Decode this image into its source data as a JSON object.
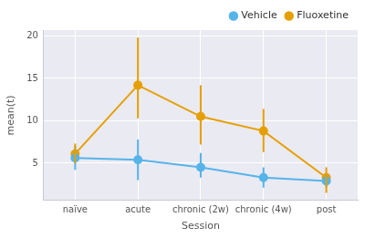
{
  "chart_data": {
    "type": "line",
    "x_label": "Session",
    "y_label": "mean(t)",
    "categories": [
      "naïve",
      "acute",
      "chronic (2w)",
      "chronic (4w)",
      "post"
    ],
    "series": [
      {
        "name": "Vehicle",
        "color": "#56b4e9",
        "marker": "circle",
        "values": [
          5.6,
          5.4,
          4.5,
          3.3,
          2.9
        ],
        "lower": [
          4.2,
          3.0,
          3.3,
          2.1,
          2.2
        ],
        "upper": [
          7.0,
          7.8,
          6.2,
          4.5,
          3.7
        ]
      },
      {
        "name": "Fluoxetine",
        "color": "#e69f00",
        "marker": "circle",
        "values": [
          6.1,
          14.2,
          10.5,
          8.8,
          3.3
        ],
        "lower": [
          5.0,
          10.3,
          7.2,
          6.3,
          1.5
        ],
        "upper": [
          7.3,
          19.8,
          14.2,
          11.4,
          4.5
        ]
      }
    ],
    "ylim": [
      0.6,
      20.7
    ],
    "yticks": [
      5,
      10,
      15,
      20
    ],
    "grid": true,
    "legend": "upper right"
  }
}
